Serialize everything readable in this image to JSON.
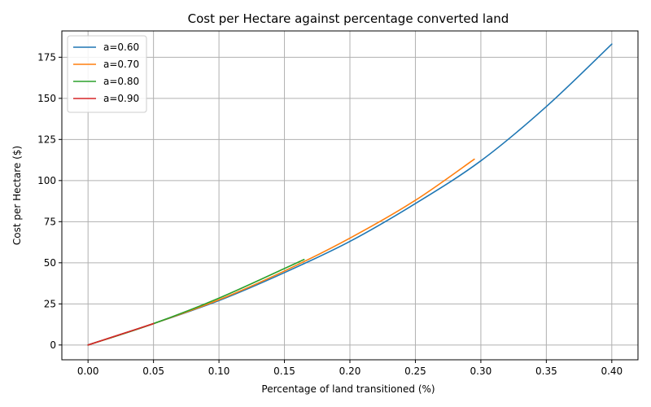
{
  "chart_data": {
    "type": "line",
    "title": "Cost per Hectare against percentage converted land",
    "xlabel": "Percentage of land transitioned (%)",
    "ylabel": "Cost per Hectare ($)",
    "xlim": [
      -0.02,
      0.42
    ],
    "ylim": [
      -9,
      191
    ],
    "xticks": [
      "0.00",
      "0.05",
      "0.10",
      "0.15",
      "0.20",
      "0.25",
      "0.30",
      "0.35",
      "0.40"
    ],
    "yticks": [
      "0",
      "25",
      "50",
      "75",
      "100",
      "125",
      "150",
      "175"
    ],
    "grid": true,
    "legend_position": "top-left",
    "series": [
      {
        "name": "a=0.60",
        "color": "#1f77b4",
        "x": [
          0.0,
          0.05,
          0.1,
          0.15,
          0.2,
          0.25,
          0.3,
          0.35,
          0.4
        ],
        "y": [
          0,
          13,
          27,
          44,
          63,
          86,
          112,
          145,
          183
        ]
      },
      {
        "name": "a=0.70",
        "color": "#ff7f0e",
        "x": [
          0.0,
          0.05,
          0.1,
          0.15,
          0.2,
          0.25,
          0.295
        ],
        "y": [
          0,
          13,
          27.5,
          45,
          65,
          88,
          113
        ]
      },
      {
        "name": "a=0.80",
        "color": "#2ca02c",
        "x": [
          0.0,
          0.05,
          0.1,
          0.15,
          0.165
        ],
        "y": [
          0,
          13,
          28.5,
          46.5,
          52
        ]
      },
      {
        "name": "a=0.90",
        "color": "#d62728",
        "x": [
          0.0,
          0.025,
          0.05
        ],
        "y": [
          0,
          6.5,
          13
        ]
      }
    ]
  }
}
